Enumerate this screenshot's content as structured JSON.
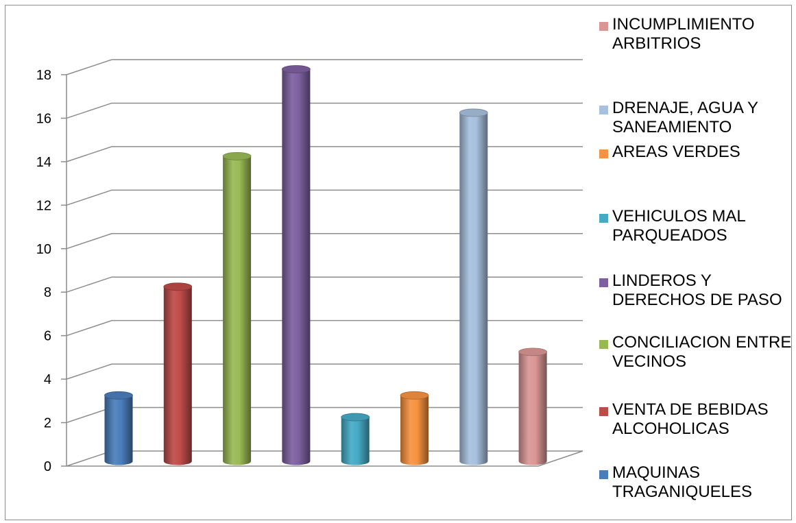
{
  "chart_data": {
    "type": "bar",
    "categories": [
      "MAQUINAS TRAGANIQUELES",
      "VENTA DE BEBIDAS ALCOHOLICAS",
      "CONCILIACION ENTRE VECINOS",
      "LINDEROS Y DERECHOS DE PASO",
      "VEHICULOS MAL PARQUEADOS",
      "AREAS VERDES",
      "DRENAJE, AGUA Y SANEAMIENTO",
      "INCUMPLIMIENTO ARBITRIOS"
    ],
    "values": [
      3,
      8,
      14,
      18,
      2,
      3,
      16,
      5
    ],
    "colors": [
      "#4a7ebb",
      "#be4b48",
      "#98b954",
      "#7d60a0",
      "#46aac5",
      "#f69240",
      "#a7c0de",
      "#da9694"
    ],
    "ylim": [
      0,
      18
    ],
    "yticks": [
      "0",
      "2",
      "4",
      "6",
      "8",
      "10",
      "12",
      "14",
      "16",
      "18"
    ],
    "grid": true,
    "legend_position": "right",
    "style": "3d-cylinder"
  },
  "legend": [
    {
      "label": "INCUMPLIMIENTO ARBITRIOS",
      "color": "#da9694"
    },
    {
      "label": "DRENAJE, AGUA Y SANEAMIENTO",
      "color": "#a7c0de"
    },
    {
      "label": "AREAS VERDES",
      "color": "#f69240"
    },
    {
      "label": "VEHICULOS MAL PARQUEADOS",
      "color": "#46aac5"
    },
    {
      "label": "LINDEROS Y DERECHOS DE PASO",
      "color": "#7d60a0"
    },
    {
      "label": "CONCILIACION ENTRE VECINOS",
      "color": "#98b954"
    },
    {
      "label": "VENTA DE BEBIDAS ALCOHOLICAS",
      "color": "#be4b48"
    },
    {
      "label": "MAQUINAS TRAGANIQUELES",
      "color": "#4a7ebb"
    }
  ]
}
